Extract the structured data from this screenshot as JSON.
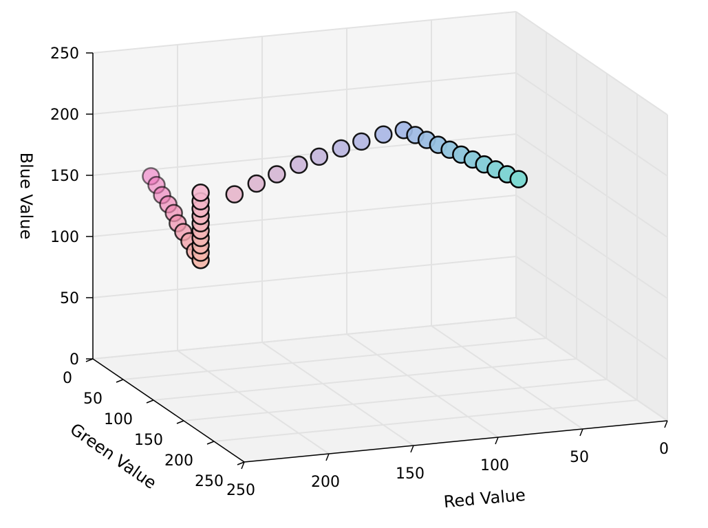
{
  "chart_data": {
    "type": "scatter3d",
    "xlabel": "Red Value",
    "ylabel": "Green Value",
    "zlabel": "Blue Value",
    "xlim": [
      0,
      250
    ],
    "ylim": [
      0,
      250
    ],
    "zlim": [
      0,
      250
    ],
    "xticks": [
      "0",
      "50",
      "100",
      "150",
      "200",
      "250"
    ],
    "yticks": [
      "0",
      "50",
      "100",
      "150",
      "200",
      "250"
    ],
    "zticks": [
      "0",
      "50",
      "100",
      "150",
      "200",
      "250"
    ],
    "grid": true,
    "marker_edge_color": "#000000",
    "points": [
      [
        230,
        40,
        160
      ],
      [
        231,
        52,
        157
      ],
      [
        232,
        64,
        153
      ],
      [
        233,
        77,
        150
      ],
      [
        234,
        89,
        147
      ],
      [
        236,
        101,
        143
      ],
      [
        237,
        113,
        140
      ],
      [
        238,
        126,
        137
      ],
      [
        239,
        138,
        133
      ],
      [
        240,
        150,
        130
      ],
      [
        240,
        150,
        136
      ],
      [
        240,
        150,
        142
      ],
      [
        240,
        150,
        148
      ],
      [
        240,
        150,
        154
      ],
      [
        240,
        150,
        160
      ],
      [
        240,
        150,
        166
      ],
      [
        240,
        150,
        172
      ],
      [
        240,
        150,
        178
      ],
      [
        240,
        150,
        185
      ],
      [
        220,
        150,
        181
      ],
      [
        207,
        150,
        188
      ],
      [
        195,
        150,
        194
      ],
      [
        182,
        150,
        200
      ],
      [
        170,
        150,
        205
      ],
      [
        157,
        150,
        210
      ],
      [
        145,
        150,
        214
      ],
      [
        132,
        150,
        218
      ],
      [
        120,
        150,
        220
      ],
      [
        115,
        155,
        217
      ],
      [
        110,
        160,
        214
      ],
      [
        105,
        165,
        211
      ],
      [
        100,
        170,
        208
      ],
      [
        95,
        175,
        205
      ],
      [
        90,
        180,
        202
      ],
      [
        85,
        185,
        199
      ],
      [
        80,
        190,
        196
      ],
      [
        75,
        195,
        193
      ],
      [
        70,
        200,
        190
      ]
    ]
  }
}
